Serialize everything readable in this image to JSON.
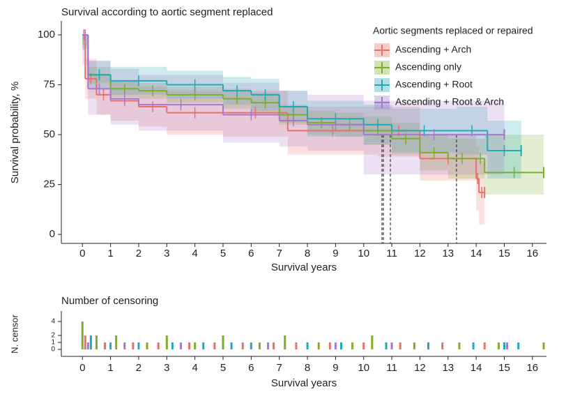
{
  "chart_data": [
    {
      "type": "step",
      "title": "Survival according to aortic segment replaced",
      "x_label": "Survival years",
      "y_label": "Survival probability, %",
      "legend_title": "Aortic segments replaced or repaired",
      "legend": "top-right",
      "xlim": [
        -0.75,
        16.5
      ],
      "ylim": [
        -4.5,
        107
      ],
      "xticks": [
        0,
        1,
        2,
        3,
        4,
        5,
        6,
        7,
        8,
        9,
        10,
        11,
        12,
        13,
        14,
        15,
        16
      ],
      "yticks": [
        0,
        25,
        50,
        75,
        100
      ],
      "median_level": 50,
      "median_lines": [
        10.65,
        10.7,
        10.95,
        13.3
      ],
      "series": [
        {
          "name": "Ascending + Arch",
          "color": "#e8706a",
          "x": [
            0,
            0.1,
            0.5,
            1,
            2,
            3,
            5,
            7.3,
            10.5,
            12,
            14,
            14.1,
            14.3
          ],
          "values": [
            100,
            78,
            70,
            67,
            64,
            61,
            61,
            52,
            52,
            38,
            28,
            21,
            21
          ],
          "ci_lower": [
            92,
            68,
            60,
            57,
            54,
            50,
            49,
            40,
            39,
            27,
            12,
            5,
            5
          ],
          "ci_upper": [
            100,
            88,
            80,
            77,
            74,
            72,
            72,
            64,
            64,
            50,
            44,
            37,
            37
          ]
        },
        {
          "name": "Ascending only",
          "color": "#7cae2c",
          "x": [
            0,
            0.2,
            1,
            2,
            3,
            5,
            6,
            7,
            8,
            9,
            10,
            11,
            12,
            13,
            14,
            14.3,
            16.4
          ],
          "values": [
            100,
            80,
            73,
            72,
            70,
            68,
            66,
            60,
            56,
            55,
            52,
            48,
            41,
            38,
            38,
            31,
            31
          ],
          "ci_lower": [
            95,
            76,
            69,
            68,
            66,
            63,
            61,
            55,
            50,
            49,
            45,
            40,
            32,
            28,
            28,
            20,
            20
          ],
          "ci_upper": [
            100,
            84,
            77,
            76,
            74,
            73,
            71,
            65,
            62,
            61,
            59,
            56,
            50,
            48,
            48,
            50,
            50
          ]
        },
        {
          "name": "Ascending + Root",
          "color": "#22a9b5",
          "x": [
            0,
            0.2,
            1,
            3,
            5,
            6,
            7,
            8,
            10,
            11,
            13.3,
            14.4,
            15.6
          ],
          "values": [
            100,
            80,
            77,
            75,
            72,
            70,
            64,
            58,
            55,
            52,
            52,
            42,
            42
          ],
          "ci_lower": [
            93,
            73,
            70,
            68,
            65,
            62,
            56,
            49,
            45,
            41,
            40,
            28,
            28
          ],
          "ci_upper": [
            100,
            87,
            84,
            82,
            79,
            78,
            72,
            67,
            65,
            63,
            64,
            57,
            57
          ]
        },
        {
          "name": "Ascending + Root & Arch",
          "color": "#a678c9",
          "x": [
            0,
            0.2,
            1,
            2,
            5,
            7,
            8,
            10,
            15
          ],
          "values": [
            100,
            73,
            68,
            65,
            60,
            57,
            55,
            50,
            50
          ],
          "ci_lower": [
            85,
            60,
            55,
            52,
            46,
            44,
            42,
            30,
            30
          ],
          "ci_upper": [
            100,
            87,
            83,
            80,
            76,
            72,
            70,
            67,
            67
          ]
        }
      ]
    },
    {
      "type": "bar",
      "title": "Number of censoring",
      "x_label": "Survival years",
      "y_label": "N. censor",
      "xlim": [
        -0.75,
        16.5
      ],
      "ylim": [
        -1,
        5.5
      ],
      "xticks": [
        0,
        1,
        2,
        3,
        4,
        5,
        6,
        7,
        8,
        9,
        10,
        11,
        12,
        13,
        14,
        15,
        16
      ],
      "yticks": [
        0,
        1,
        2,
        4
      ],
      "series": [
        {
          "color": "#e8706a",
          "x": [
            0.1,
            0.8,
            1.8,
            2.7,
            3.8,
            4.7,
            5.7,
            6.8,
            7.6,
            8.8,
            10,
            11.3,
            12.8,
            14.3
          ],
          "values": [
            2,
            1,
            1,
            1,
            1,
            1,
            1,
            1,
            1,
            1,
            1,
            1,
            1,
            1
          ]
        },
        {
          "color": "#7cae2c",
          "x": [
            0,
            0.5,
            1.2,
            2.3,
            3,
            4,
            5,
            6.3,
            7.2,
            8.4,
            9.6,
            10.3,
            11.8,
            13.4,
            14.8,
            16.4
          ],
          "values": [
            4,
            2,
            2,
            1,
            2,
            1,
            2,
            1,
            2,
            1,
            1,
            2,
            1,
            1,
            1,
            1
          ]
        },
        {
          "color": "#22a9b5",
          "x": [
            0.3,
            1,
            2,
            3.2,
            4.3,
            5.3,
            6,
            8,
            9.2,
            10.8,
            12.3,
            13.9,
            15,
            15.5
          ],
          "values": [
            2,
            1,
            1,
            1,
            1,
            1,
            1,
            1,
            1,
            1,
            1,
            1,
            1,
            1
          ]
        },
        {
          "color": "#a678c9",
          "x": [
            0.2,
            1.5,
            3.5,
            6.6,
            9,
            11,
            15.1
          ],
          "values": [
            1,
            1,
            1,
            1,
            1,
            1,
            1
          ]
        }
      ]
    }
  ]
}
